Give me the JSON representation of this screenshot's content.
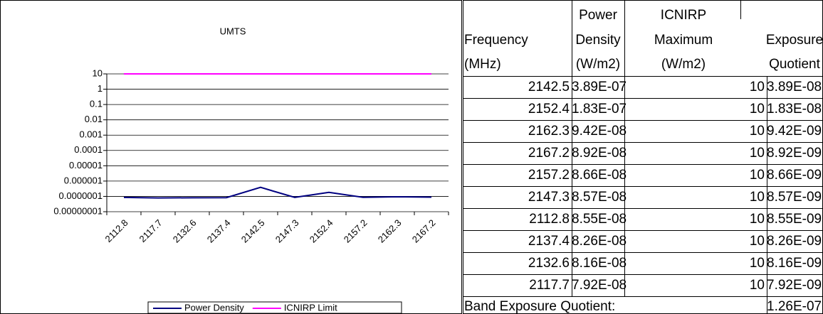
{
  "chart_data": {
    "type": "line",
    "title": "UMTS",
    "categories": [
      "2112.8",
      "2117.7",
      "2132.6",
      "2137.4",
      "2142.5",
      "2147.3",
      "2152.4",
      "2157.2",
      "2162.3",
      "2167.2"
    ],
    "series": [
      {
        "name": "Power Density",
        "color": "#000080",
        "values": [
          8.55e-08,
          7.92e-08,
          8.16e-08,
          8.26e-08,
          3.89e-07,
          8.57e-08,
          1.83e-07,
          8.66e-08,
          9.42e-08,
          8.92e-08
        ]
      },
      {
        "name": "ICNIRP Limit",
        "color": "#ff00ff",
        "values": [
          10,
          10,
          10,
          10,
          10,
          10,
          10,
          10,
          10,
          10
        ]
      }
    ],
    "ylim": [
      1e-08,
      10
    ],
    "log_y": true,
    "grid": true,
    "legend": "bottom",
    "yticks": [
      10,
      1,
      0.1,
      0.01,
      0.001,
      0.0001,
      1e-05,
      1e-06,
      {
        "value": 1e-07,
        "label": "0.0000001"
      },
      {
        "value": 1e-08,
        "label": "0.00000001"
      }
    ]
  },
  "table": {
    "header": [
      [
        "Frequency",
        "(MHz)"
      ],
      [
        "Power",
        "Density",
        "(W/m2)"
      ],
      [
        "ICNIRP",
        "Maximum",
        "(W/m2)"
      ],
      [
        "Exposure",
        "Quotient"
      ]
    ],
    "rows": [
      [
        "2142.5",
        "3.89E-07",
        "10",
        "3.89E-08"
      ],
      [
        "2152.4",
        "1.83E-07",
        "10",
        "1.83E-08"
      ],
      [
        "2162.3",
        "9.42E-08",
        "10",
        "9.42E-09"
      ],
      [
        "2167.2",
        "8.92E-08",
        "10",
        "8.92E-09"
      ],
      [
        "2157.2",
        "8.66E-08",
        "10",
        "8.66E-09"
      ],
      [
        "2147.3",
        "8.57E-08",
        "10",
        "8.57E-09"
      ],
      [
        "2112.8",
        "8.55E-08",
        "10",
        "8.55E-09"
      ],
      [
        "2137.4",
        "8.26E-08",
        "10",
        "8.26E-09"
      ],
      [
        "2132.6",
        "8.16E-08",
        "10",
        "8.16E-09"
      ],
      [
        "2117.7",
        "7.92E-08",
        "10",
        "7.92E-09"
      ]
    ],
    "footer": {
      "label": "Band Exposure Quotient:",
      "value": "1.26E-07"
    }
  }
}
